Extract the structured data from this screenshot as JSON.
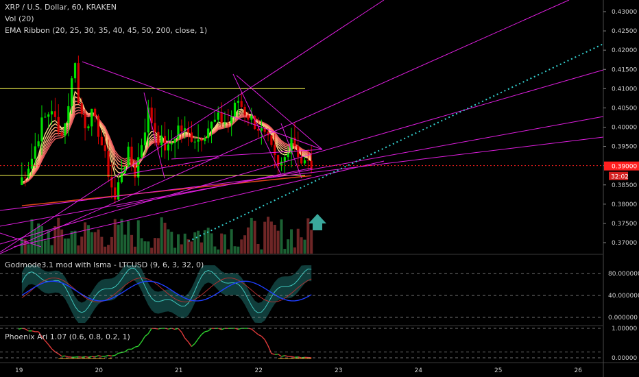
{
  "header": {
    "symbol": "XRP / U.S. Dollar, 60, KRAKEN",
    "vol": "Vol (20)",
    "ema": "EMA Ribbon (20, 25, 30, 35, 40, 45, 50, 200, close, 1)",
    "godmode": "Godmode3.1 mod with lsma - LTCUSD (9, 6, 3, 32, 0)",
    "phoenix": "Phoenix Ari 1.07 (0.6, 0.8, 0.2, 1)"
  },
  "price_tag": {
    "value": "0.39000",
    "countdown": "32:02"
  },
  "colors": {
    "background": "#000000",
    "up": "#00e000",
    "down": "#d60000",
    "trendline": "#e01ee0",
    "horizontal": "#e5e54a",
    "dotted": "#35d3d3",
    "arrow": "#3aa89c",
    "price_tag": "#ff1f1f"
  },
  "chart_data": [
    {
      "type": "candlestick",
      "title": "XRP / U.S. Dollar, 60, KRAKEN",
      "ylim": [
        0.3665,
        0.4345
      ],
      "y_ticks": [
        "0.43000",
        "0.42500",
        "0.42000",
        "0.41500",
        "0.41000",
        "0.40500",
        "0.40000",
        "0.39500",
        "0.39000",
        "0.38500",
        "0.38000",
        "0.37500",
        "0.37000"
      ],
      "x_ticks": [
        "19",
        "20",
        "21",
        "22",
        "23",
        "24",
        "25",
        "26"
      ],
      "horizontal_levels": [
        0.41,
        0.3875
      ],
      "last_price": 0.39
    },
    {
      "type": "line",
      "title": "Godmode3.1 mod with lsma - LTCUSD (9, 6, 3, 32, 0)",
      "y_ticks": [
        "80.000000",
        "40.000000",
        "0.000000"
      ]
    },
    {
      "type": "line",
      "title": "Phoenix Ari 1.07 (0.6, 0.8, 0.2, 1)",
      "y_ticks": [
        "1.00000",
        "0.00000"
      ]
    }
  ]
}
